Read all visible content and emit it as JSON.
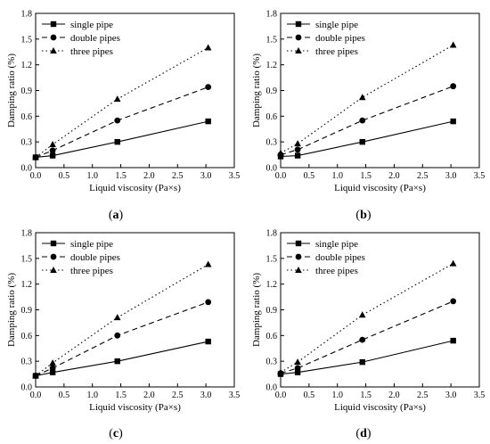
{
  "chart_data": [
    {
      "panel_label": "(a)",
      "type": "line",
      "xlabel": "Liquid viscosity (Pa×s)",
      "ylabel": "Damping ratio (%)",
      "xlim": [
        0.0,
        3.5
      ],
      "ylim": [
        0.0,
        1.8
      ],
      "xticks": [
        "0.0",
        "0.5",
        "1.0",
        "1.5",
        "2.0",
        "2.5",
        "3.0",
        "3.5"
      ],
      "yticks": [
        "0.0",
        "0.3",
        "0.6",
        "0.9",
        "1.2",
        "1.5",
        "1.8"
      ],
      "legend_position": "top-left",
      "series": [
        {
          "name": "single pipe",
          "marker": "square",
          "line": "solid",
          "x": [
            0.0,
            0.3,
            1.44,
            3.04
          ],
          "y": [
            0.12,
            0.14,
            0.3,
            0.54
          ]
        },
        {
          "name": "double pipes",
          "marker": "circle",
          "line": "dashed",
          "x": [
            0.0,
            0.3,
            1.44,
            3.04
          ],
          "y": [
            0.12,
            0.2,
            0.55,
            0.94
          ]
        },
        {
          "name": "three pipes",
          "marker": "triangle",
          "line": "dotted",
          "x": [
            0.0,
            0.3,
            1.44,
            3.04
          ],
          "y": [
            0.12,
            0.27,
            0.8,
            1.4
          ]
        }
      ]
    },
    {
      "panel_label": "(b)",
      "type": "line",
      "xlabel": "Liquid viscosity (Pa×s)",
      "ylabel": "Damping ratio (%)",
      "xlim": [
        0.0,
        3.5
      ],
      "ylim": [
        0.0,
        1.8
      ],
      "xticks": [
        "0.0",
        "0.5",
        "1.0",
        "1.5",
        "2.0",
        "2.5",
        "3.0",
        "3.5"
      ],
      "yticks": [
        "0.0",
        "0.3",
        "0.6",
        "0.9",
        "1.2",
        "1.5",
        "1.8"
      ],
      "legend_position": "top-left",
      "series": [
        {
          "name": "single pipe",
          "marker": "square",
          "line": "solid",
          "x": [
            0.0,
            0.3,
            1.44,
            3.04
          ],
          "y": [
            0.13,
            0.14,
            0.3,
            0.54
          ]
        },
        {
          "name": "double pipes",
          "marker": "circle",
          "line": "dashed",
          "x": [
            0.0,
            0.3,
            1.44,
            3.04
          ],
          "y": [
            0.15,
            0.21,
            0.55,
            0.95
          ]
        },
        {
          "name": "three pipes",
          "marker": "triangle",
          "line": "dotted",
          "x": [
            0.0,
            0.3,
            1.44,
            3.04
          ],
          "y": [
            0.17,
            0.28,
            0.82,
            1.43
          ]
        }
      ]
    },
    {
      "panel_label": "(c)",
      "type": "line",
      "xlabel": "Liquid viscosity (Pa×s)",
      "ylabel": "Damping ratio (%)",
      "xlim": [
        0.0,
        3.5
      ],
      "ylim": [
        0.0,
        1.8
      ],
      "xticks": [
        "0.0",
        "0.5",
        "1.0",
        "1.5",
        "2.0",
        "2.5",
        "3.0",
        "3.5"
      ],
      "yticks": [
        "0.0",
        "0.3",
        "0.6",
        "0.9",
        "1.2",
        "1.5",
        "1.8"
      ],
      "legend_position": "top-left",
      "series": [
        {
          "name": "single pipe",
          "marker": "square",
          "line": "solid",
          "x": [
            0.0,
            0.3,
            1.44,
            3.04
          ],
          "y": [
            0.13,
            0.17,
            0.3,
            0.53
          ]
        },
        {
          "name": "double pipes",
          "marker": "circle",
          "line": "dashed",
          "x": [
            0.0,
            0.3,
            1.44,
            3.04
          ],
          "y": [
            0.13,
            0.22,
            0.6,
            0.99
          ]
        },
        {
          "name": "three pipes",
          "marker": "triangle",
          "line": "dotted",
          "x": [
            0.0,
            0.3,
            1.44,
            3.04
          ],
          "y": [
            0.13,
            0.28,
            0.81,
            1.43
          ]
        }
      ]
    },
    {
      "panel_label": "(d)",
      "type": "line",
      "xlabel": "Liquid viscosity (Pa×s)",
      "ylabel": "Damping ratio (%)",
      "xlim": [
        0.0,
        3.5
      ],
      "ylim": [
        0.0,
        1.8
      ],
      "xticks": [
        "0.0",
        "0.5",
        "1.0",
        "1.5",
        "2.0",
        "2.5",
        "3.0",
        "3.5"
      ],
      "yticks": [
        "0.0",
        "0.3",
        "0.6",
        "0.9",
        "1.2",
        "1.5",
        "1.8"
      ],
      "legend_position": "top-left",
      "series": [
        {
          "name": "single pipe",
          "marker": "square",
          "line": "solid",
          "x": [
            0.0,
            0.3,
            1.44,
            3.04
          ],
          "y": [
            0.15,
            0.17,
            0.29,
            0.54
          ]
        },
        {
          "name": "double pipes",
          "marker": "circle",
          "line": "dashed",
          "x": [
            0.0,
            0.3,
            1.44,
            3.04
          ],
          "y": [
            0.16,
            0.22,
            0.55,
            1.0
          ]
        },
        {
          "name": "three pipes",
          "marker": "triangle",
          "line": "dotted",
          "x": [
            0.0,
            0.3,
            1.44,
            3.04
          ],
          "y": [
            0.17,
            0.29,
            0.84,
            1.44
          ]
        }
      ]
    }
  ]
}
